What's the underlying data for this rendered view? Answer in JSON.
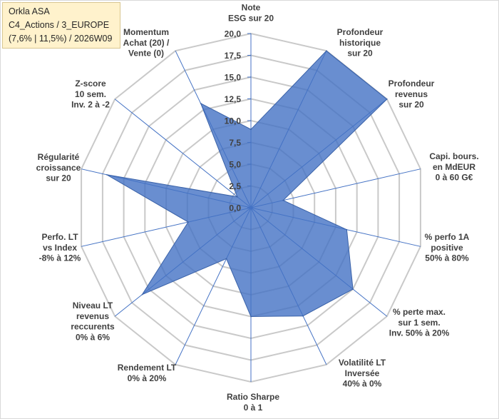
{
  "chart_data": {
    "type": "radar",
    "title": [
      "Orkla ASA",
      "C4_Actions / 3_EUROPE",
      "(7,6% | 11,5%) / 2026W09"
    ],
    "categories": [
      [
        "Note",
        "ESG sur 20"
      ],
      [
        "Profondeur",
        "historique",
        "sur 20"
      ],
      [
        "Profondeur",
        "revenus",
        "sur 20"
      ],
      [
        "Capi. bours.",
        "en MdEUR",
        "0 à 60 G€"
      ],
      [
        "% perfo 1A",
        "positive",
        "50% à 80%"
      ],
      [
        "% perte max.",
        "sur 1 sem.",
        "Inv. 50% à 20%"
      ],
      [
        "Volatilité LT",
        "Inversée",
        "40% à 0%"
      ],
      [
        "Ratio Sharpe",
        "0 à 1"
      ],
      [
        "Rendement LT",
        "0% à 20%"
      ],
      [
        "Niveau LT",
        "revenus",
        "reccurents",
        "0% à 6%"
      ],
      [
        "Perfo. LT",
        "vs Index",
        "-8% à 12%"
      ],
      [
        "Régularité",
        "croissance",
        "sur 20"
      ],
      [
        "Z-score",
        "10 sem.",
        "Inv. 2 à -2"
      ],
      [
        "Momentum",
        "Achat (20) /",
        "Vente (0)"
      ]
    ],
    "series": [
      {
        "values": [
          9.0,
          20.0,
          20.0,
          3.8,
          11.3,
          15.0,
          13.8,
          12.5,
          6.5,
          16.0,
          7.4,
          17.0,
          2.0,
          13.3
        ]
      }
    ],
    "ylim": [
      0,
      20
    ],
    "yticks": [
      "0,0",
      "2,5",
      "5,0",
      "7,5",
      "10,0",
      "12,5",
      "15,0",
      "17,5",
      "20,0"
    ],
    "grid": true,
    "legend": "none"
  },
  "colors": {
    "series_fill": "#4472C4",
    "series_stroke": "#3A62A8",
    "spoke": "#4472C4",
    "grid": "#C9C9C9",
    "label_text": "#404040",
    "title_bg": "#FFF2CC",
    "title_border": "#D8C690",
    "frame_border": "#D9D9D9"
  }
}
